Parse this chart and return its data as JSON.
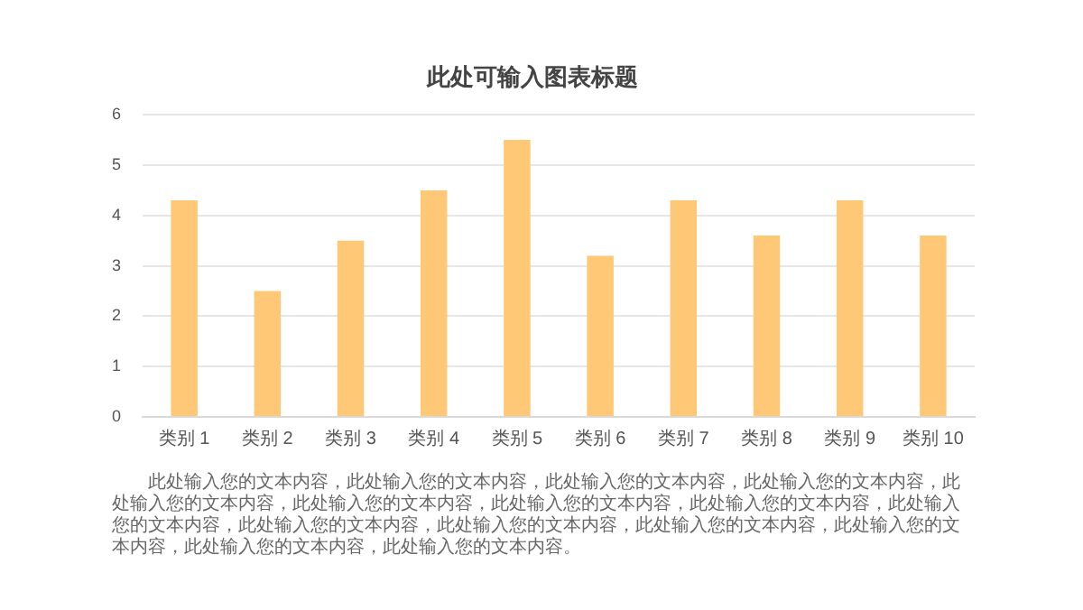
{
  "chart_data": {
    "type": "bar",
    "title": "此处可输入图表标题",
    "categories": [
      "类别 1",
      "类别 2",
      "类别 3",
      "类别 4",
      "类别 5",
      "类别 6",
      "类别 7",
      "类别 8",
      "类别 9",
      "类别 10"
    ],
    "values": [
      4.3,
      2.5,
      3.5,
      4.5,
      5.5,
      3.2,
      4.3,
      3.6,
      4.3,
      3.6
    ],
    "color": "#fec877",
    "ylim": [
      0,
      6
    ],
    "yticks": [
      0,
      1,
      2,
      3,
      4,
      5,
      6
    ],
    "grid": "y",
    "annotations": [
      "此处输入您的文本内容，此处输入您的文本内容，此处输入您的文本内容，此处输入您的文本内容，此处输入您的文本内容，此处输入您的文本内容，此处输入您的文本内容，此处输入您的文本内容，此处输入您的文本内容，此处输入您的文本内容，此处输入您的文本内容，此处输入您的文本内容，此处输入您的文本内容，此处输入您的文本内容，此处输入您的文本内容。"
    ]
  }
}
